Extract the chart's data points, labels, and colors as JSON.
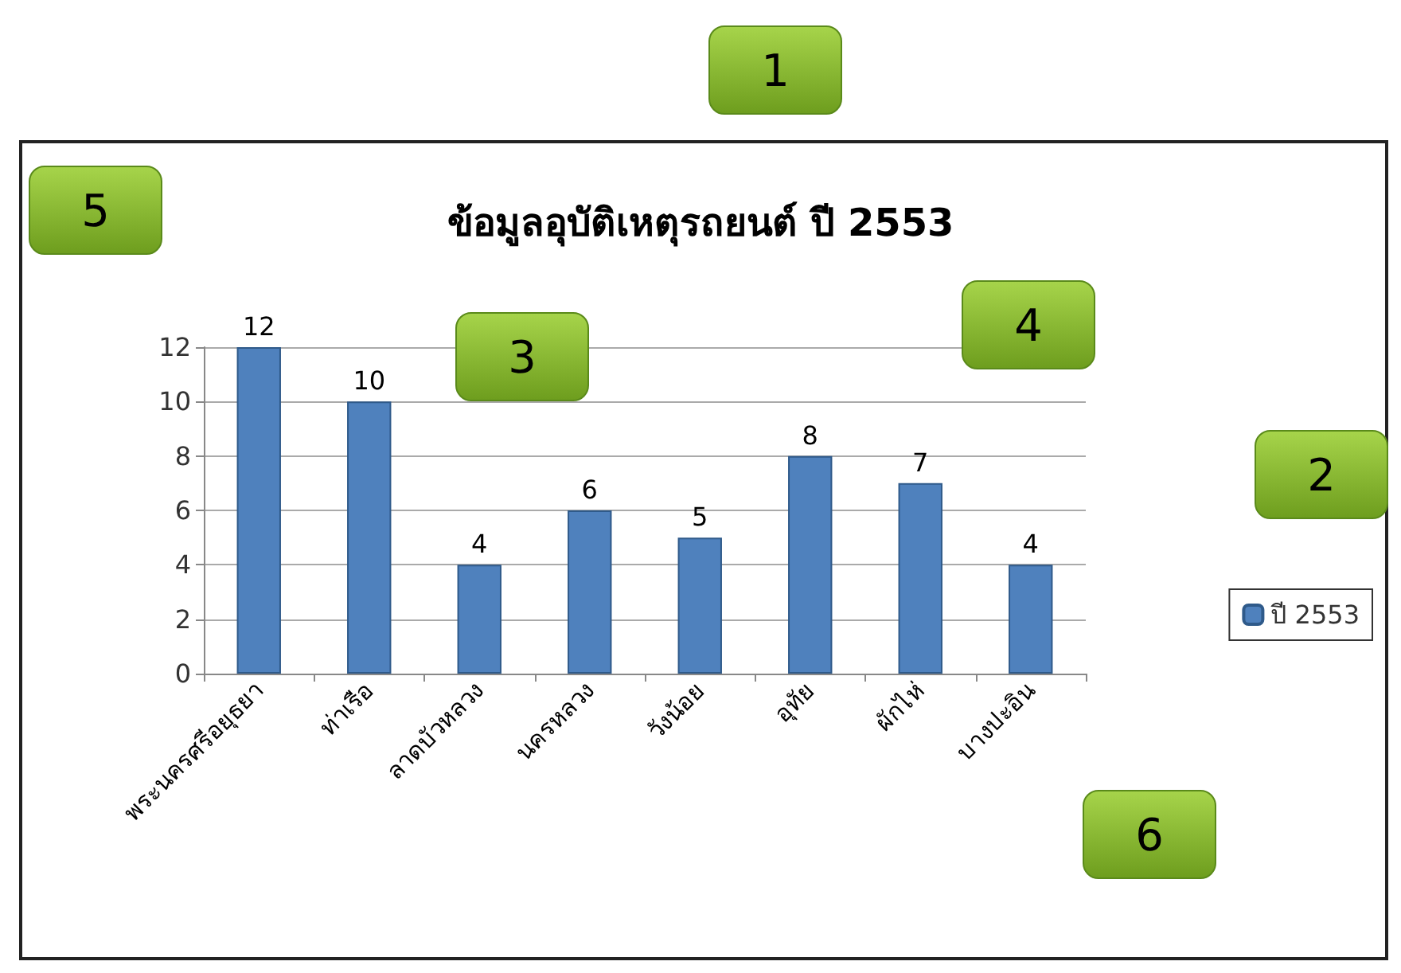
{
  "chart_data": {
    "type": "bar",
    "title": "ข้อมูลอุบัติเหตุรถยนต์ ปี 2553",
    "categories": [
      "พระนครศรีอยุธยา",
      "ท่าเรือ",
      "ลาดบัวหลวง",
      "นครหลวง",
      "วังน้อย",
      "อุทัย",
      "ผักไห่",
      "บางปะอิน"
    ],
    "series": [
      {
        "name": "ปี 2553",
        "color": "#4f81bd",
        "values": [
          12,
          10,
          4,
          6,
          5,
          8,
          7,
          4
        ]
      }
    ],
    "ylim": [
      0,
      12
    ],
    "yticks": [
      0,
      2,
      4,
      6,
      8,
      10,
      12
    ],
    "grid": "y",
    "legend": "right",
    "data_labels": true,
    "annotations": [
      "1",
      "2",
      "3",
      "4",
      "5",
      "6"
    ]
  }
}
